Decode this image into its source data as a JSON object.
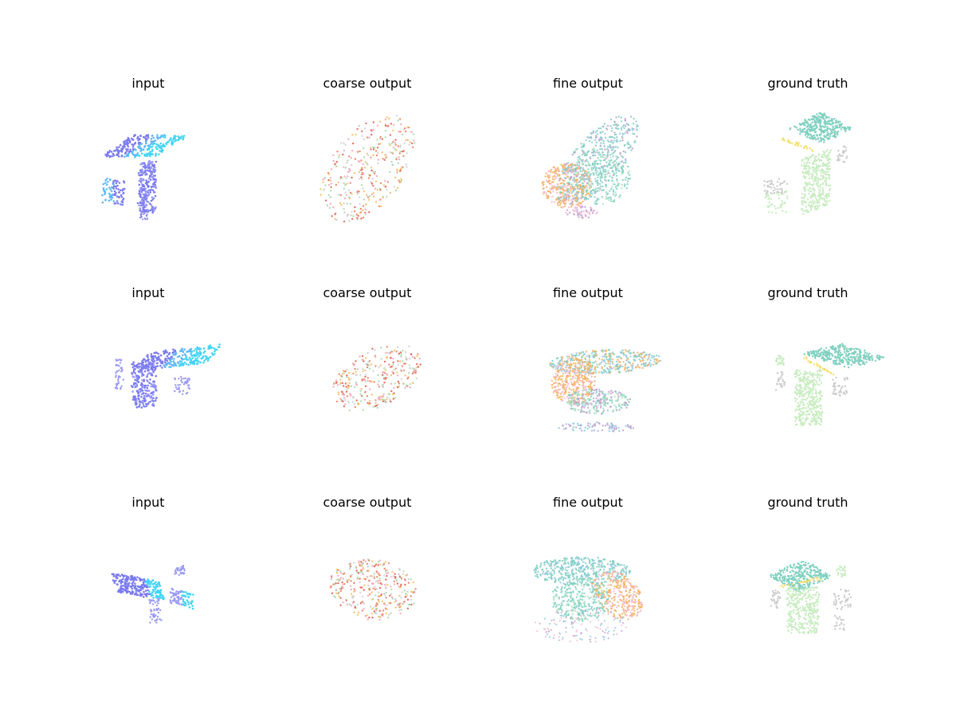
{
  "figure": {
    "rows": [
      {
        "panels": [
          {
            "title": "input",
            "kind": "input"
          },
          {
            "title": "coarse output",
            "kind": "coarse"
          },
          {
            "title": "fine output",
            "kind": "fine"
          },
          {
            "title": "ground truth",
            "kind": "gt"
          }
        ]
      },
      {
        "panels": [
          {
            "title": "input",
            "kind": "input"
          },
          {
            "title": "coarse output",
            "kind": "coarse"
          },
          {
            "title": "fine output",
            "kind": "fine"
          },
          {
            "title": "ground truth",
            "kind": "gt"
          }
        ]
      },
      {
        "panels": [
          {
            "title": "input",
            "kind": "input"
          },
          {
            "title": "coarse output",
            "kind": "coarse"
          },
          {
            "title": "fine output",
            "kind": "fine"
          },
          {
            "title": "ground truth",
            "kind": "gt"
          }
        ]
      }
    ],
    "colors": {
      "input": [
        "#7b7bf0",
        "#9a9af5",
        "#44d4f5",
        "#5fb8f7"
      ],
      "coarse": [
        "#f08060",
        "#f5c060",
        "#e06050",
        "#d0d0d0",
        "#a8d8b0",
        "#f0a8b8"
      ],
      "fine": [
        "#f5b060",
        "#7fcfc0",
        "#90c8e0",
        "#c0a0d0",
        "#f5b8d0",
        "#a8e0c0"
      ],
      "gt_top": "#80d0c0",
      "gt_body": "#c8ecc0",
      "gt_edge": "#f5e070",
      "gt_gray": "#cccccc"
    }
  }
}
